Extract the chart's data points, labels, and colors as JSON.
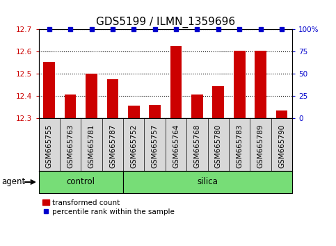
{
  "title": "GDS5199 / ILMN_1359696",
  "samples": [
    "GSM665755",
    "GSM665763",
    "GSM665781",
    "GSM665787",
    "GSM665752",
    "GSM665757",
    "GSM665764",
    "GSM665768",
    "GSM665780",
    "GSM665783",
    "GSM665789",
    "GSM665790"
  ],
  "bar_values": [
    12.555,
    12.405,
    12.5,
    12.475,
    12.355,
    12.36,
    12.625,
    12.405,
    12.445,
    12.605,
    12.605,
    12.335
  ],
  "percentile_values": [
    100,
    100,
    100,
    100,
    100,
    100,
    100,
    100,
    100,
    100,
    100,
    100
  ],
  "bar_color": "#cc0000",
  "dot_color": "#0000cc",
  "bar_bottom": 12.3,
  "ylim_left": [
    12.3,
    12.7
  ],
  "ylim_right": [
    0,
    100
  ],
  "yticks_left": [
    12.3,
    12.4,
    12.5,
    12.6,
    12.7
  ],
  "yticks_right": [
    0,
    25,
    50,
    75,
    100
  ],
  "n_control": 4,
  "n_silica": 8,
  "control_color": "#77dd77",
  "silica_color": "#77dd77",
  "agent_label": "agent",
  "control_label": "control",
  "silica_label": "silica",
  "legend_bar_label": "transformed count",
  "legend_dot_label": "percentile rank within the sample",
  "bar_width": 0.55,
  "title_fontsize": 11,
  "tick_fontsize": 7.5,
  "label_fontsize": 8.5,
  "background_color": "#ffffff",
  "xticklabel_bg": "#d8d8d8"
}
